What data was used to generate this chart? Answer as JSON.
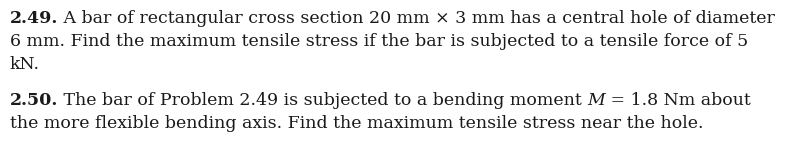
{
  "background_color": "#ffffff",
  "figsize": [
    7.96,
    1.68
  ],
  "dpi": 100,
  "p249_bold": "2.49.",
  "p249_rest_line1": " A bar of rectangular cross section 20 mm × 3 mm has a central hole of diameter",
  "p249_line2": "6 mm. Find the maximum tensile stress if the bar is subjected to a tensile force of 5",
  "p249_line3": "kN.",
  "p250_bold": "2.50.",
  "p250_normal": " The bar of Problem 2.49 is subjected to a bending moment ",
  "p250_italic": "M",
  "p250_after": " = 1.8 Nm about",
  "p250_line2": "the more flexible bending axis. Find the maximum tensile stress near the hole.",
  "font_size": 12.5,
  "text_color": "#1a1a1a",
  "font_family": "serif"
}
